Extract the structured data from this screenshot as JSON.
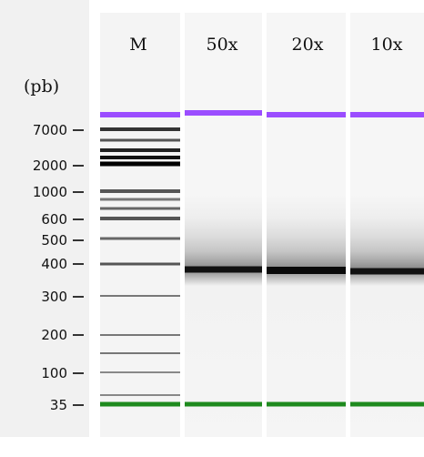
{
  "unit_label": "(pb)",
  "lanes": [
    {
      "label": "M",
      "type": "ladder"
    },
    {
      "label": "50x",
      "type": "sample"
    },
    {
      "label": "20x",
      "type": "sample"
    },
    {
      "label": "10x",
      "type": "sample"
    }
  ],
  "size_markers": [
    "7000",
    "2000",
    "1000",
    "600",
    "500",
    "400",
    "300",
    "200",
    "100",
    "35"
  ],
  "colors": {
    "upper_marker": "#9b4dff",
    "lower_marker": "#1e8a1e",
    "band": "#111111",
    "ladder_band": "#666666"
  }
}
